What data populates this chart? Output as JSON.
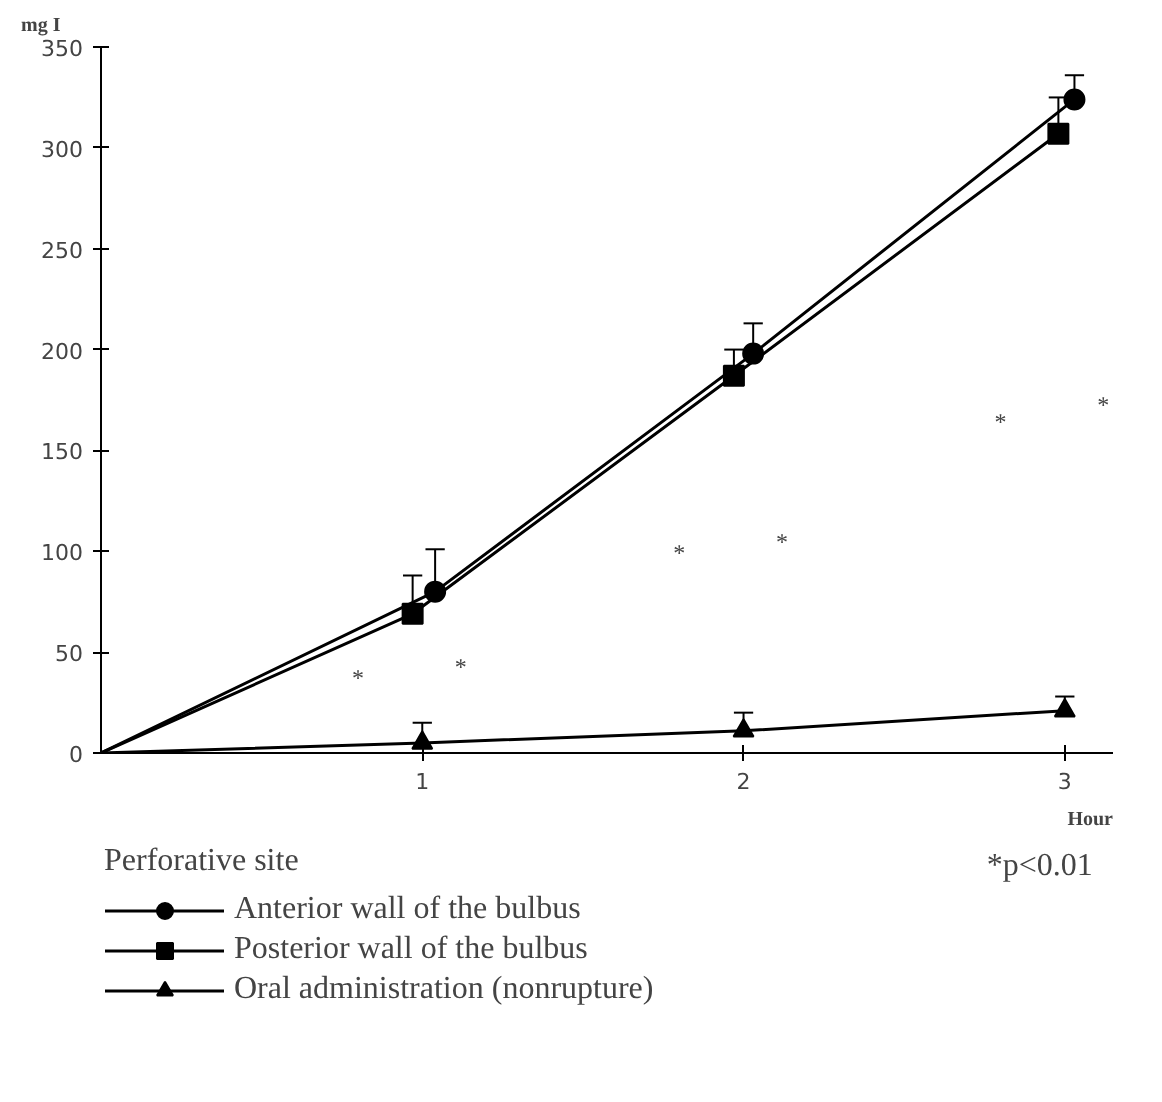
{
  "chart_data": {
    "type": "line",
    "ylabel": "mg I",
    "xlabel": "Hour",
    "legend_title": "Perforative site",
    "series": [
      {
        "name": "Anterior wall of the bulbus",
        "color": "#000000",
        "marker": "circle",
        "x": [
          0,
          1.04,
          2.03,
          3.03
        ],
        "values": [
          0,
          80,
          198,
          324
        ],
        "errors": [
          null,
          [
            80,
            101
          ],
          [
            198,
            213
          ],
          [
            324,
            336
          ]
        ]
      },
      {
        "name": "Posterior wall of the bulbus",
        "color": "#000000",
        "marker": "square",
        "x": [
          0,
          0.97,
          1.97,
          2.98
        ],
        "values": [
          0,
          69,
          187,
          307
        ],
        "errors": [
          null,
          [
            69,
            88
          ],
          [
            187,
            200
          ],
          [
            307,
            325
          ]
        ]
      },
      {
        "name": "Oral administration (nonrupture)",
        "color": "#000000",
        "marker": "triangle",
        "x": [
          0,
          1,
          2,
          3
        ],
        "values": [
          0,
          5,
          11,
          21
        ],
        "errors": [
          null,
          [
            5,
            15
          ],
          [
            11,
            20
          ],
          [
            21,
            28
          ]
        ]
      }
    ],
    "xlim": [
      0,
      3.15
    ],
    "xticks": [
      1,
      2,
      3
    ],
    "ylim": [
      0,
      350
    ],
    "yticks": [
      0,
      50,
      100,
      150,
      200,
      250,
      300,
      350
    ],
    "grid": false,
    "legend": "bottom",
    "line_style": "solid",
    "annotations": [
      "*",
      "*",
      "*",
      "*",
      "*",
      "*",
      "*p<0.01"
    ]
  }
}
